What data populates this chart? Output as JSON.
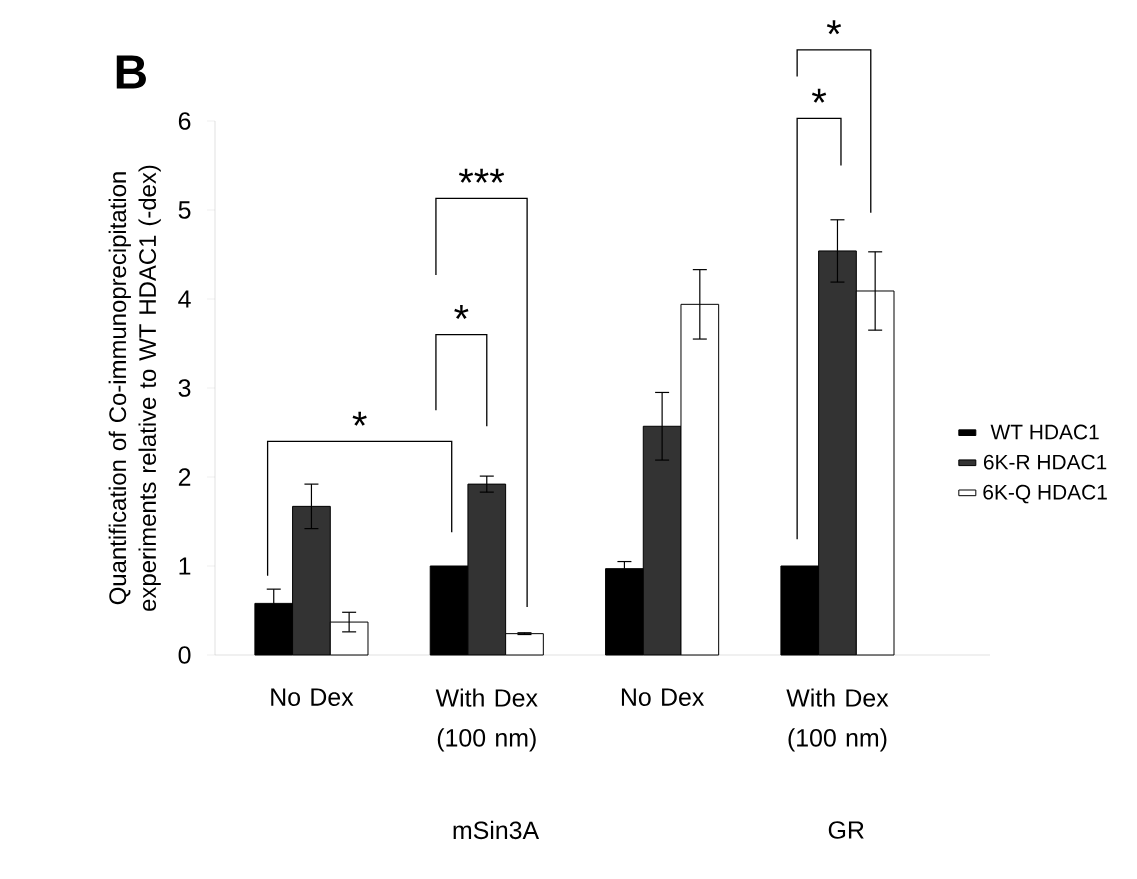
{
  "chart_data": {
    "type": "bar",
    "ylabel": "Quantification of Co-immunoprecipitation experiments relative to WT HDAC1 (-dex)",
    "categories": [
      "No Dex",
      "With Dex (100 nm)",
      "No Dex",
      "With Dex (100 nm)"
    ],
    "series": [
      {
        "name": "WT HDAC1",
        "color": "#000000",
        "values": [
          0.58,
          1.0,
          0.97,
          1.0
        ],
        "errors": [
          0.16,
          null,
          0.08,
          null
        ]
      },
      {
        "name": "6K-R HDAC1",
        "color": "#333333",
        "values": [
          1.67,
          1.92,
          2.57,
          4.54
        ],
        "errors": [
          0.25,
          0.09,
          0.38,
          0.35
        ]
      },
      {
        "name": "6K-Q HDAC1",
        "color": "#ffffff",
        "values": [
          0.37,
          0.24,
          3.94,
          4.09
        ],
        "errors": [
          0.11,
          0.01,
          0.39,
          0.44
        ]
      }
    ],
    "ylim": [
      0,
      6
    ],
    "yticks": [
      0,
      1,
      2,
      3,
      4,
      5,
      6
    ],
    "legend": "right",
    "annotations": [
      "B",
      "*",
      "*",
      "***",
      "*",
      "*",
      "mSin3A",
      "GR"
    ]
  }
}
